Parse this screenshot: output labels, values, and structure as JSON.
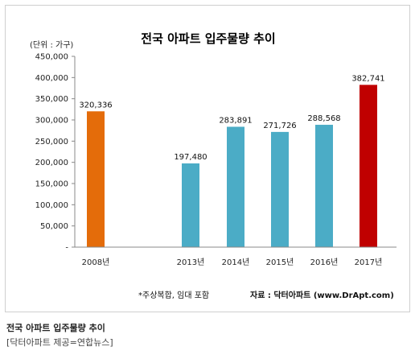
{
  "chart_data": {
    "type": "bar",
    "title": "전국 아파트 입주물량 추이",
    "unit_label": "(단위 : 가구)",
    "categories": [
      "2008년",
      "2013년",
      "2014년",
      "2015년",
      "2016년",
      "2017년"
    ],
    "values": [
      320336,
      197480,
      283891,
      271726,
      288568,
      382741
    ],
    "data_labels": [
      "320,336",
      "197,480",
      "283,891",
      "271,726",
      "288,568",
      "382,741"
    ],
    "bar_colors": [
      "#E46C0A",
      "#4BACC6",
      "#4BACC6",
      "#4BACC6",
      "#4BACC6",
      "#C00000"
    ],
    "ylim": [
      0,
      450000
    ],
    "y_ticks": [
      "-",
      "50,000",
      "100,000",
      "150,000",
      "200,000",
      "250,000",
      "300,000",
      "350,000",
      "400,000",
      "450,000"
    ],
    "grid": false,
    "legend": "none",
    "footnote": "*주상복합, 임대 포함",
    "source": "자료 : 닥터아파트 (www.DrApt.com)"
  },
  "caption": {
    "title": "전국 아파트 입주물량 추이",
    "credit": "[닥터아파트 제공=연합뉴스]"
  }
}
